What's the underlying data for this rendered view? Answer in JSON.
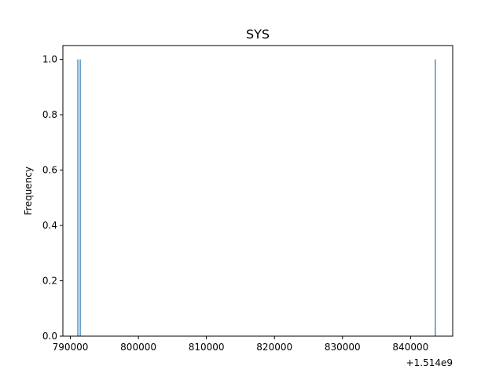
{
  "chart_data": {
    "type": "bar",
    "title": "SYS",
    "xlabel": "",
    "ylabel": "Frequency",
    "x_offset_label": "+1.514e9",
    "x_offset": 1514000000,
    "xlim": [
      788900,
      846200
    ],
    "ylim": [
      0,
      1.05
    ],
    "x_ticks": [
      790000,
      800000,
      810000,
      820000,
      830000,
      840000
    ],
    "x_tick_labels": [
      "790000",
      "800000",
      "810000",
      "820000",
      "830000",
      "840000"
    ],
    "y_ticks": [
      0.0,
      0.2,
      0.4,
      0.6,
      0.8,
      1.0
    ],
    "y_tick_labels": [
      "0.0",
      "0.2",
      "0.4",
      "0.6",
      "0.8",
      "1.0"
    ],
    "grid": false,
    "bar_color": "#1f77b4",
    "bars": [
      {
        "x": 791100,
        "value": 1
      },
      {
        "x": 791450,
        "value": 1
      },
      {
        "x": 843650,
        "value": 1
      }
    ]
  }
}
